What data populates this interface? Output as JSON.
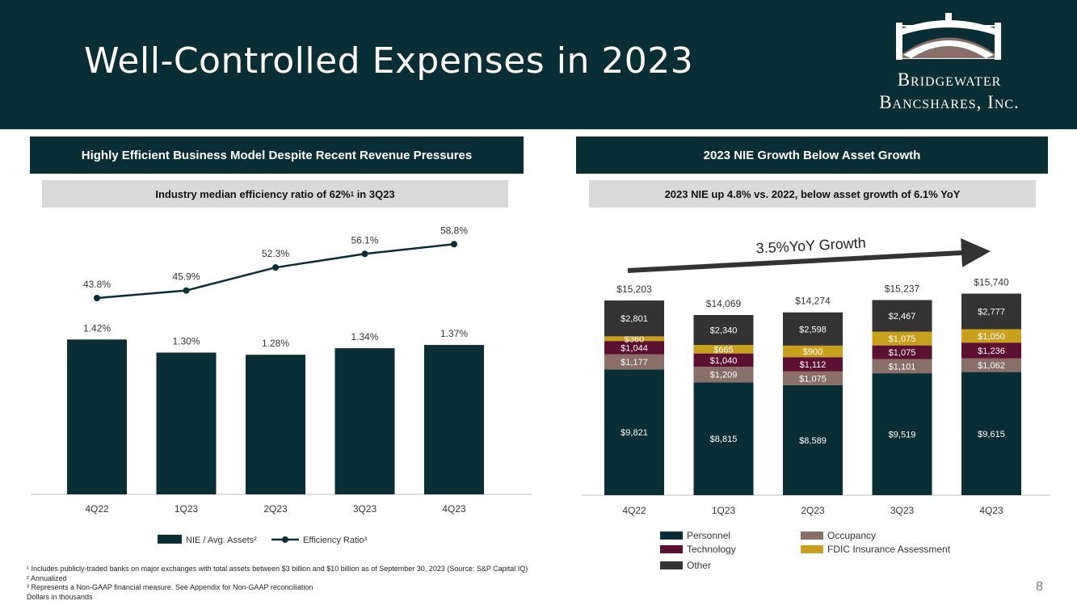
{
  "page": {
    "title": "Well-Controlled Expenses in 2023",
    "page_number": "8"
  },
  "logo": {
    "line1": "Bridgewater",
    "line2": "Bancshares, Inc."
  },
  "left_panel": {
    "heading": "Highly Efficient Business Model Despite Recent Revenue Pressures",
    "subheading_pre": "Industry median efficiency ratio of 62%",
    "subheading_sup": "1",
    "subheading_post": " in 3Q23"
  },
  "right_panel": {
    "heading": "2023 NIE Growth Below Asset Growth",
    "subheading": "2023 NIE up 4.8% vs. 2022, below asset growth of 6.1% YoY",
    "growth_label": "3.5%YoY Growth"
  },
  "footnotes": [
    "¹ Includes publicly-traded banks on major exchanges with total assets between $3 billion and $10 billion as of September 30, 2023 (Source: S&P Capital IQ)",
    "² Annualized",
    "³ Represents a Non-GAAP financial measure. See Appendix for Non-GAAP reconciliation",
    "Dollars in thousands"
  ],
  "colors": {
    "dark": "#0a2e35",
    "technology": "#5c1030",
    "occupancy": "#8a6e68",
    "fdic": "#c9a01d",
    "other": "#333333",
    "line": "#0a2e35"
  },
  "chart_data": [
    {
      "type": "bar",
      "subtype": "bar+line",
      "categories": [
        "4Q22",
        "1Q23",
        "2Q23",
        "3Q23",
        "4Q23"
      ],
      "series": [
        {
          "name": "NIE / Avg. Assets²",
          "type": "bar",
          "values": [
            1.42,
            1.3,
            1.28,
            1.34,
            1.37
          ],
          "labels": [
            "1.42%",
            "1.30%",
            "1.28%",
            "1.34%",
            "1.37%"
          ]
        },
        {
          "name": "Efficiency Ratio³",
          "type": "line",
          "values": [
            43.8,
            45.9,
            52.3,
            56.1,
            58.8
          ],
          "labels": [
            "43.8%",
            "45.9%",
            "52.3%",
            "56.1%",
            "58.8%"
          ]
        }
      ],
      "legend": [
        "NIE / Avg. Assets²",
        "Efficiency Ratio³"
      ],
      "legend_position": "bottom"
    },
    {
      "type": "bar",
      "subtype": "stacked",
      "categories": [
        "4Q22",
        "1Q23",
        "2Q23",
        "3Q23",
        "4Q23"
      ],
      "series": [
        {
          "name": "Personnel",
          "values": [
            9821,
            8815,
            8589,
            9519,
            9615
          ],
          "labels": [
            "$9,821",
            "$8,815",
            "$8,589",
            "$9,519",
            "$9,615"
          ]
        },
        {
          "name": "Occupancy",
          "values": [
            1177,
            1209,
            1075,
            1101,
            1062
          ],
          "labels": [
            "$1,177",
            "$1,209",
            "$1,075",
            "$1,101",
            "$1,062"
          ]
        },
        {
          "name": "Technology",
          "values": [
            1044,
            1040,
            1112,
            1075,
            1236
          ],
          "labels": [
            "$1,044",
            "$1,040",
            "$1,112",
            "$1,075",
            "$1,236"
          ]
        },
        {
          "name": "FDIC Insurance Assessment",
          "values": [
            360,
            665,
            900,
            1075,
            1050
          ],
          "labels": [
            "$360",
            "$665",
            "$900",
            "$1,075",
            "$1,050"
          ]
        },
        {
          "name": "Other",
          "values": [
            2801,
            2340,
            2598,
            2467,
            2777
          ],
          "labels": [
            "$2,801",
            "$2,340",
            "$2,598",
            "$2,467",
            "$2,777"
          ]
        }
      ],
      "totals": [
        15203,
        14069,
        14274,
        15237,
        15740
      ],
      "total_labels": [
        "$15,203",
        "$14,069",
        "$14,274",
        "$15,237",
        "$15,740"
      ],
      "legend": [
        "Personnel",
        "Occupancy",
        "Technology",
        "FDIC Insurance Assessment",
        "Other"
      ],
      "legend_position": "bottom"
    }
  ]
}
